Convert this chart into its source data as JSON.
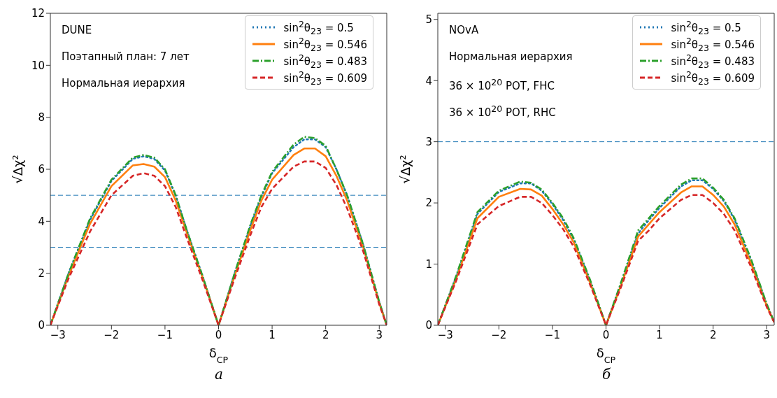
{
  "chart_data": [
    {
      "type": "line",
      "xlabel": "δ$_{CP}$",
      "ylabel": "√Δχ²",
      "x": [
        -3.14,
        -2.8,
        -2.4,
        -2.0,
        -1.6,
        -1.4,
        -1.2,
        -1.0,
        -0.8,
        -0.6,
        -0.3,
        0,
        0.3,
        0.6,
        0.8,
        1.0,
        1.4,
        1.6,
        1.8,
        2.0,
        2.2,
        2.4,
        2.7,
        3.0,
        3.14
      ],
      "series": [
        {
          "name": "sin$^{2}$θ$_{23}$ = 0.5",
          "color": "#1f77b4",
          "line_style": "dotted",
          "values": [
            0,
            2.0,
            4.05,
            5.55,
            6.4,
            6.5,
            6.4,
            5.95,
            5.0,
            3.7,
            1.9,
            0,
            2.0,
            3.85,
            4.95,
            5.85,
            6.85,
            7.15,
            7.15,
            6.85,
            6.0,
            5.0,
            3.1,
            0.9,
            0
          ]
        },
        {
          "name": "sin$^{2}$θ$_{23}$ = 0.546",
          "color": "#ff7f0e",
          "line_style": "solid",
          "values": [
            0,
            1.9,
            3.9,
            5.35,
            6.15,
            6.2,
            6.1,
            5.7,
            4.8,
            3.6,
            1.85,
            0,
            1.9,
            3.7,
            4.8,
            5.6,
            6.55,
            6.8,
            6.8,
            6.5,
            5.75,
            4.8,
            3.0,
            0.85,
            0
          ]
        },
        {
          "name": "sin$^{2}$θ$_{23}$ = 0.483",
          "color": "#2ca02c",
          "line_style": "dashdot",
          "values": [
            0,
            2.0,
            4.1,
            5.6,
            6.45,
            6.55,
            6.45,
            6.0,
            5.0,
            3.7,
            1.9,
            0,
            2.0,
            3.9,
            5.0,
            5.9,
            6.95,
            7.25,
            7.2,
            6.9,
            6.0,
            5.0,
            3.1,
            0.9,
            0
          ]
        },
        {
          "name": "sin$^{2}$θ$_{23}$ = 0.609",
          "color": "#d62728",
          "line_style": "dashed",
          "values": [
            0,
            1.8,
            3.6,
            5.0,
            5.75,
            5.85,
            5.75,
            5.35,
            4.55,
            3.4,
            1.75,
            0,
            1.8,
            3.5,
            4.55,
            5.25,
            6.1,
            6.3,
            6.3,
            6.05,
            5.4,
            4.5,
            2.85,
            0.8,
            0
          ]
        }
      ],
      "xlim": [
        -3.14,
        3.14
      ],
      "xticks": [
        -3,
        -2,
        -1,
        0,
        1,
        2,
        3
      ],
      "ylim": [
        0,
        12
      ],
      "yticks": [
        0,
        2,
        4,
        6,
        8,
        10,
        12
      ],
      "ref_lines": [
        {
          "axis": "y",
          "value": 5,
          "color": "#1f77b4",
          "line_style": "dashed"
        },
        {
          "axis": "y",
          "value": 3,
          "color": "#1f77b4",
          "line_style": "dashed"
        }
      ],
      "legend": "top right",
      "annotations": [
        "DUNE",
        "Поэтапный план: 7 лет",
        "Нормальная иерархия",
        "а"
      ]
    },
    {
      "type": "line",
      "xlabel": "δ$_{CP}$",
      "ylabel": "√Δχ²",
      "x": [
        -3.14,
        -2.8,
        -2.4,
        -2.0,
        -1.6,
        -1.4,
        -1.2,
        -1.0,
        -0.8,
        -0.6,
        -0.3,
        0,
        0.3,
        0.6,
        0.8,
        1.0,
        1.4,
        1.6,
        1.8,
        2.0,
        2.2,
        2.4,
        2.7,
        3.0,
        3.14
      ],
      "series": [
        {
          "name": "sin$^{2}$θ$_{23}$ = 0.5",
          "color": "#1f77b4",
          "line_style": "dotted",
          "values": [
            0,
            0.78,
            1.82,
            2.18,
            2.32,
            2.32,
            2.2,
            1.98,
            1.72,
            1.4,
            0.73,
            0,
            0.73,
            1.5,
            1.72,
            1.92,
            2.27,
            2.37,
            2.37,
            2.23,
            2.03,
            1.73,
            1.08,
            0.34,
            0.05
          ]
        },
        {
          "name": "sin$^{2}$θ$_{23}$ = 0.546",
          "color": "#ff7f0e",
          "line_style": "solid",
          "values": [
            0,
            0.75,
            1.75,
            2.1,
            2.23,
            2.22,
            2.12,
            1.9,
            1.65,
            1.35,
            0.7,
            0,
            0.7,
            1.45,
            1.65,
            1.85,
            2.17,
            2.27,
            2.27,
            2.13,
            1.94,
            1.65,
            1.03,
            0.32,
            0.05
          ]
        },
        {
          "name": "sin$^{2}$θ$_{23}$ = 0.483",
          "color": "#2ca02c",
          "line_style": "dashdot",
          "values": [
            0,
            0.8,
            1.85,
            2.2,
            2.35,
            2.33,
            2.22,
            2.0,
            1.75,
            1.42,
            0.75,
            0,
            0.75,
            1.55,
            1.75,
            1.95,
            2.3,
            2.4,
            2.4,
            2.25,
            2.05,
            1.75,
            1.1,
            0.35,
            0.05
          ]
        },
        {
          "name": "sin$^{2}$θ$_{23}$ = 0.609",
          "color": "#d62728",
          "line_style": "dashed",
          "values": [
            0,
            0.72,
            1.65,
            1.95,
            2.1,
            2.1,
            2.0,
            1.8,
            1.57,
            1.28,
            0.67,
            0,
            0.67,
            1.38,
            1.55,
            1.75,
            2.05,
            2.13,
            2.13,
            2.0,
            1.82,
            1.55,
            0.97,
            0.3,
            0.05
          ]
        }
      ],
      "xlim": [
        -3.14,
        3.14
      ],
      "xticks": [
        -3,
        -2,
        -1,
        0,
        1,
        2,
        3
      ],
      "ylim": [
        0,
        5.1
      ],
      "yticks": [
        0,
        1,
        2,
        3,
        4,
        5
      ],
      "ref_lines": [
        {
          "axis": "y",
          "value": 3,
          "color": "#1f77b4",
          "line_style": "dashed"
        }
      ],
      "legend": "top right",
      "annotations": [
        "NOvA",
        "Нормальная иерархия",
        "36 × 10$^{20}$ POT, FHC",
        "36 × 10$^{20}$ POT, RHC",
        "б"
      ]
    }
  ]
}
